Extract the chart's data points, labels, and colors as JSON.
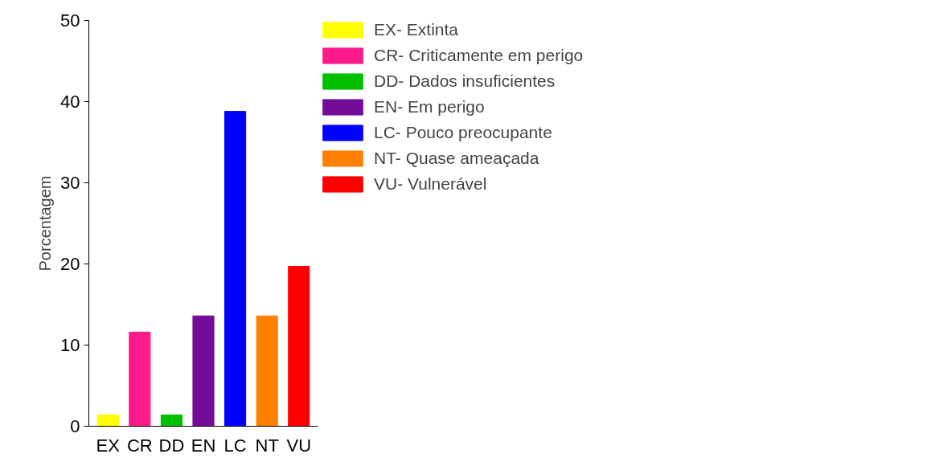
{
  "chart_data": {
    "type": "bar",
    "ylabel": "Porcentagem",
    "categories": [
      "EX",
      "CR",
      "DD",
      "EN",
      "LC",
      "NT",
      "VU"
    ],
    "series": [
      {
        "name": "EX- Extinta",
        "color": "#ffff00",
        "values": [
          1.4,
          null,
          null,
          null,
          null,
          null,
          null
        ]
      },
      {
        "name": "CR- Criticamente em perigo",
        "color": "#ff1a8c",
        "values": [
          null,
          11.6,
          null,
          null,
          null,
          null,
          null
        ]
      },
      {
        "name": "DD- Dados insuficientes",
        "color": "#00c000",
        "values": [
          null,
          null,
          1.4,
          null,
          null,
          null,
          null
        ]
      },
      {
        "name": "EN- Em perigo",
        "color": "#730c99",
        "values": [
          null,
          null,
          null,
          13.6,
          null,
          null,
          null
        ]
      },
      {
        "name": "LC- Pouco preocupante",
        "color": "#0000ff",
        "values": [
          null,
          null,
          null,
          null,
          38.8,
          null,
          null
        ]
      },
      {
        "name": "NT- Quase ameaçada",
        "color": "#ff8000",
        "values": [
          null,
          null,
          null,
          null,
          null,
          13.6,
          null
        ]
      },
      {
        "name": "VU- Vulnerável",
        "color": "#ff0000",
        "values": [
          null,
          null,
          null,
          null,
          null,
          null,
          19.7
        ]
      }
    ],
    "ylim": [
      0,
      50
    ],
    "yticks": [
      0,
      10,
      20,
      30,
      40,
      50
    ],
    "grid": false,
    "legend": "right"
  }
}
